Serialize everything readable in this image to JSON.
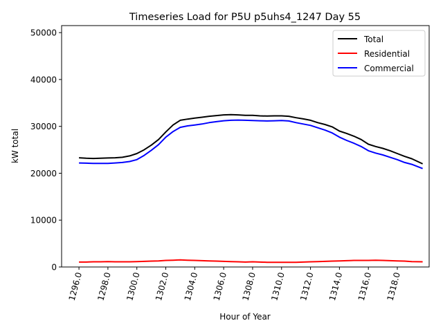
{
  "chart_data": {
    "type": "line",
    "title": "Timeseries Load for P5U p5uhs4_1247  Day 55",
    "xlabel": "Hour of Year",
    "ylabel": "kW total",
    "xlim": [
      1294.8,
      1320.2
    ],
    "ylim": [
      0,
      51500
    ],
    "xticks": [
      1296,
      1298,
      1300,
      1302,
      1304,
      1306,
      1308,
      1310,
      1312,
      1314,
      1316,
      1318
    ],
    "xtick_labels": [
      "1296.0",
      "1298.0",
      "1300.0",
      "1302.0",
      "1304.0",
      "1306.0",
      "1308.0",
      "1310.0",
      "1312.0",
      "1314.0",
      "1316.0",
      "1318.0"
    ],
    "yticks": [
      0,
      10000,
      20000,
      30000,
      40000,
      50000
    ],
    "ytick_labels": [
      "0",
      "10000",
      "20000",
      "30000",
      "40000",
      "50000"
    ],
    "legend_position": "top-right",
    "x": [
      1296,
      1296.5,
      1297,
      1297.5,
      1298,
      1298.5,
      1299,
      1299.5,
      1300,
      1300.5,
      1301,
      1301.5,
      1302,
      1302.5,
      1303,
      1303.5,
      1304,
      1304.5,
      1305,
      1305.5,
      1306,
      1306.5,
      1307,
      1307.5,
      1308,
      1308.5,
      1309,
      1309.5,
      1310,
      1310.5,
      1311,
      1311.5,
      1312,
      1312.5,
      1313,
      1313.5,
      1314,
      1314.5,
      1315,
      1315.5,
      1316,
      1316.5,
      1317,
      1317.5,
      1318,
      1318.5,
      1319,
      1319.75
    ],
    "series": [
      {
        "name": "Total",
        "color": "#000000",
        "values": [
          23300,
          23200,
          23150,
          23200,
          23250,
          23300,
          23400,
          23700,
          24200,
          25000,
          26000,
          27200,
          28800,
          30300,
          31300,
          31550,
          31750,
          31950,
          32150,
          32300,
          32450,
          32500,
          32450,
          32350,
          32350,
          32250,
          32200,
          32250,
          32250,
          32150,
          31850,
          31600,
          31300,
          30800,
          30400,
          29900,
          29000,
          28500,
          27900,
          27200,
          26200,
          25700,
          25300,
          24800,
          24200,
          23600,
          23100,
          22000
        ]
      },
      {
        "name": "Residential",
        "color": "#ff0000",
        "values": [
          1050,
          1050,
          1100,
          1100,
          1150,
          1100,
          1100,
          1100,
          1150,
          1200,
          1250,
          1300,
          1400,
          1450,
          1500,
          1450,
          1400,
          1350,
          1300,
          1250,
          1200,
          1150,
          1100,
          1050,
          1100,
          1050,
          1000,
          1000,
          1000,
          1000,
          1000,
          1050,
          1100,
          1150,
          1200,
          1250,
          1300,
          1350,
          1400,
          1400,
          1400,
          1450,
          1400,
          1350,
          1300,
          1250,
          1150,
          1100
        ]
      },
      {
        "name": "Commercial",
        "color": "#0000ff",
        "values": [
          22200,
          22150,
          22100,
          22100,
          22100,
          22200,
          22300,
          22500,
          22900,
          23800,
          24900,
          26100,
          27700,
          28900,
          29800,
          30100,
          30300,
          30500,
          30800,
          31000,
          31200,
          31300,
          31350,
          31300,
          31250,
          31200,
          31150,
          31200,
          31250,
          31150,
          30800,
          30500,
          30200,
          29700,
          29200,
          28600,
          27700,
          27000,
          26400,
          25700,
          24800,
          24300,
          23900,
          23400,
          22900,
          22300,
          21900,
          21000
        ]
      }
    ]
  }
}
